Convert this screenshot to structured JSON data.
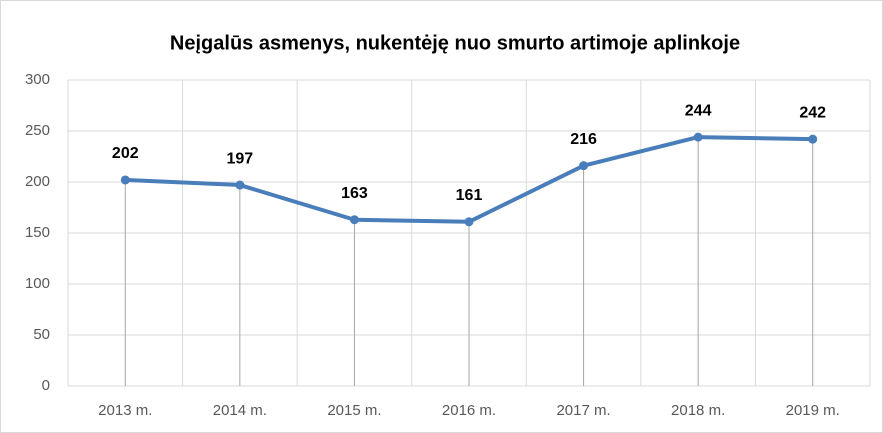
{
  "chart_data": {
    "type": "line",
    "title": "Neįgalūs asmenys, nukentėję nuo smurto artimoje aplinkoje",
    "categories": [
      "2013 m.",
      "2014 m.",
      "2015 m.",
      "2016 m.",
      "2017 m.",
      "2018 m.",
      "2019 m."
    ],
    "values": [
      202,
      197,
      163,
      161,
      216,
      244,
      242
    ],
    "color": "#4a7ebb",
    "ylim": [
      0,
      300
    ],
    "yticks": [
      0,
      50,
      100,
      150,
      200,
      250,
      300
    ],
    "grid": true,
    "drop_lines": true,
    "data_labels": true
  }
}
